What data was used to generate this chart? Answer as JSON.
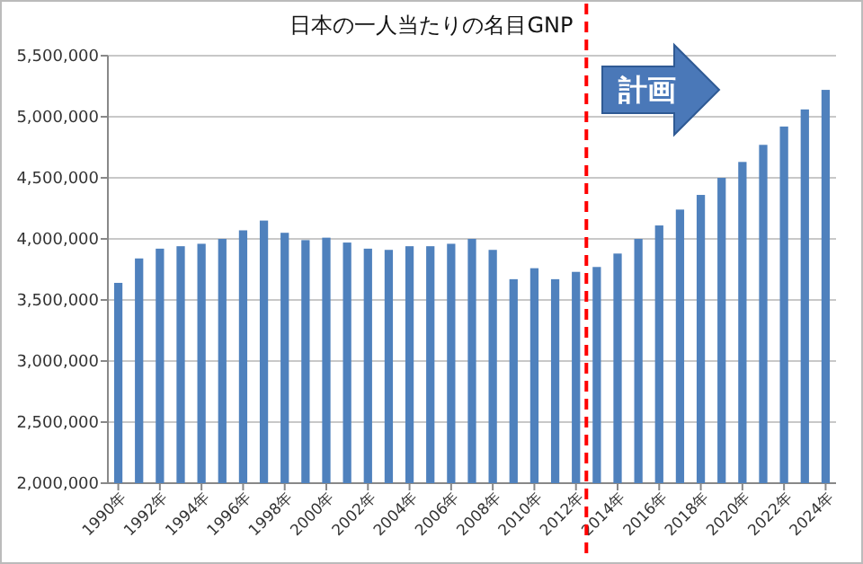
{
  "chart_data": {
    "type": "bar",
    "title": "日本の一人当たりの名目GNP",
    "x": [
      1990,
      1991,
      1992,
      1993,
      1994,
      1995,
      1996,
      1997,
      1998,
      1999,
      2000,
      2001,
      2002,
      2003,
      2004,
      2005,
      2006,
      2007,
      2008,
      2009,
      2010,
      2011,
      2012,
      2013,
      2014,
      2015,
      2016,
      2017,
      2018,
      2019,
      2020,
      2021,
      2022,
      2023,
      2024
    ],
    "values": [
      3640000,
      3840000,
      3920000,
      3940000,
      3960000,
      4000000,
      4070000,
      4150000,
      4050000,
      3990000,
      4010000,
      3970000,
      3920000,
      3910000,
      3940000,
      3940000,
      3960000,
      4000000,
      3910000,
      3670000,
      3760000,
      3670000,
      3730000,
      3770000,
      3880000,
      4000000,
      4110000,
      4240000,
      4360000,
      4500000,
      4630000,
      4770000,
      4920000,
      5060000,
      5220000
    ],
    "color": "#4f81bd",
    "xlim": [
      1989.5,
      2024.5
    ],
    "xticks": [
      {
        "value": 1990,
        "label": "1990年"
      },
      {
        "value": 1992,
        "label": "1992年"
      },
      {
        "value": 1994,
        "label": "1994年"
      },
      {
        "value": 1996,
        "label": "1996年"
      },
      {
        "value": 1998,
        "label": "1998年"
      },
      {
        "value": 2000,
        "label": "2000年"
      },
      {
        "value": 2002,
        "label": "2002年"
      },
      {
        "value": 2004,
        "label": "2004年"
      },
      {
        "value": 2006,
        "label": "2006年"
      },
      {
        "value": 2008,
        "label": "2008年"
      },
      {
        "value": 2010,
        "label": "2010年"
      },
      {
        "value": 2012,
        "label": "2012年"
      },
      {
        "value": 2014,
        "label": "2014年"
      },
      {
        "value": 2016,
        "label": "2016年"
      },
      {
        "value": 2018,
        "label": "2018年"
      },
      {
        "value": 2020,
        "label": "2020年"
      },
      {
        "value": 2022,
        "label": "2022年"
      },
      {
        "value": 2024,
        "label": "2024年"
      }
    ],
    "ylim": [
      2000000,
      5500000
    ],
    "yticks": [
      {
        "value": 2000000,
        "label": "2,000,000"
      },
      {
        "value": 2500000,
        "label": "2,500,000"
      },
      {
        "value": 3000000,
        "label": "3,000,000"
      },
      {
        "value": 3500000,
        "label": "3,500,000"
      },
      {
        "value": 4000000,
        "label": "4,000,000"
      },
      {
        "value": 4500000,
        "label": "4,500,000"
      },
      {
        "value": 5000000,
        "label": "5,000,000"
      },
      {
        "value": 5500000,
        "label": "5,500,000"
      }
    ],
    "grid": "y",
    "ref_lines": [
      {
        "axis": "x",
        "value": 2012.5,
        "color": "#ff0000",
        "line_style": "dashed"
      }
    ],
    "annotations": [
      "計画"
    ]
  }
}
